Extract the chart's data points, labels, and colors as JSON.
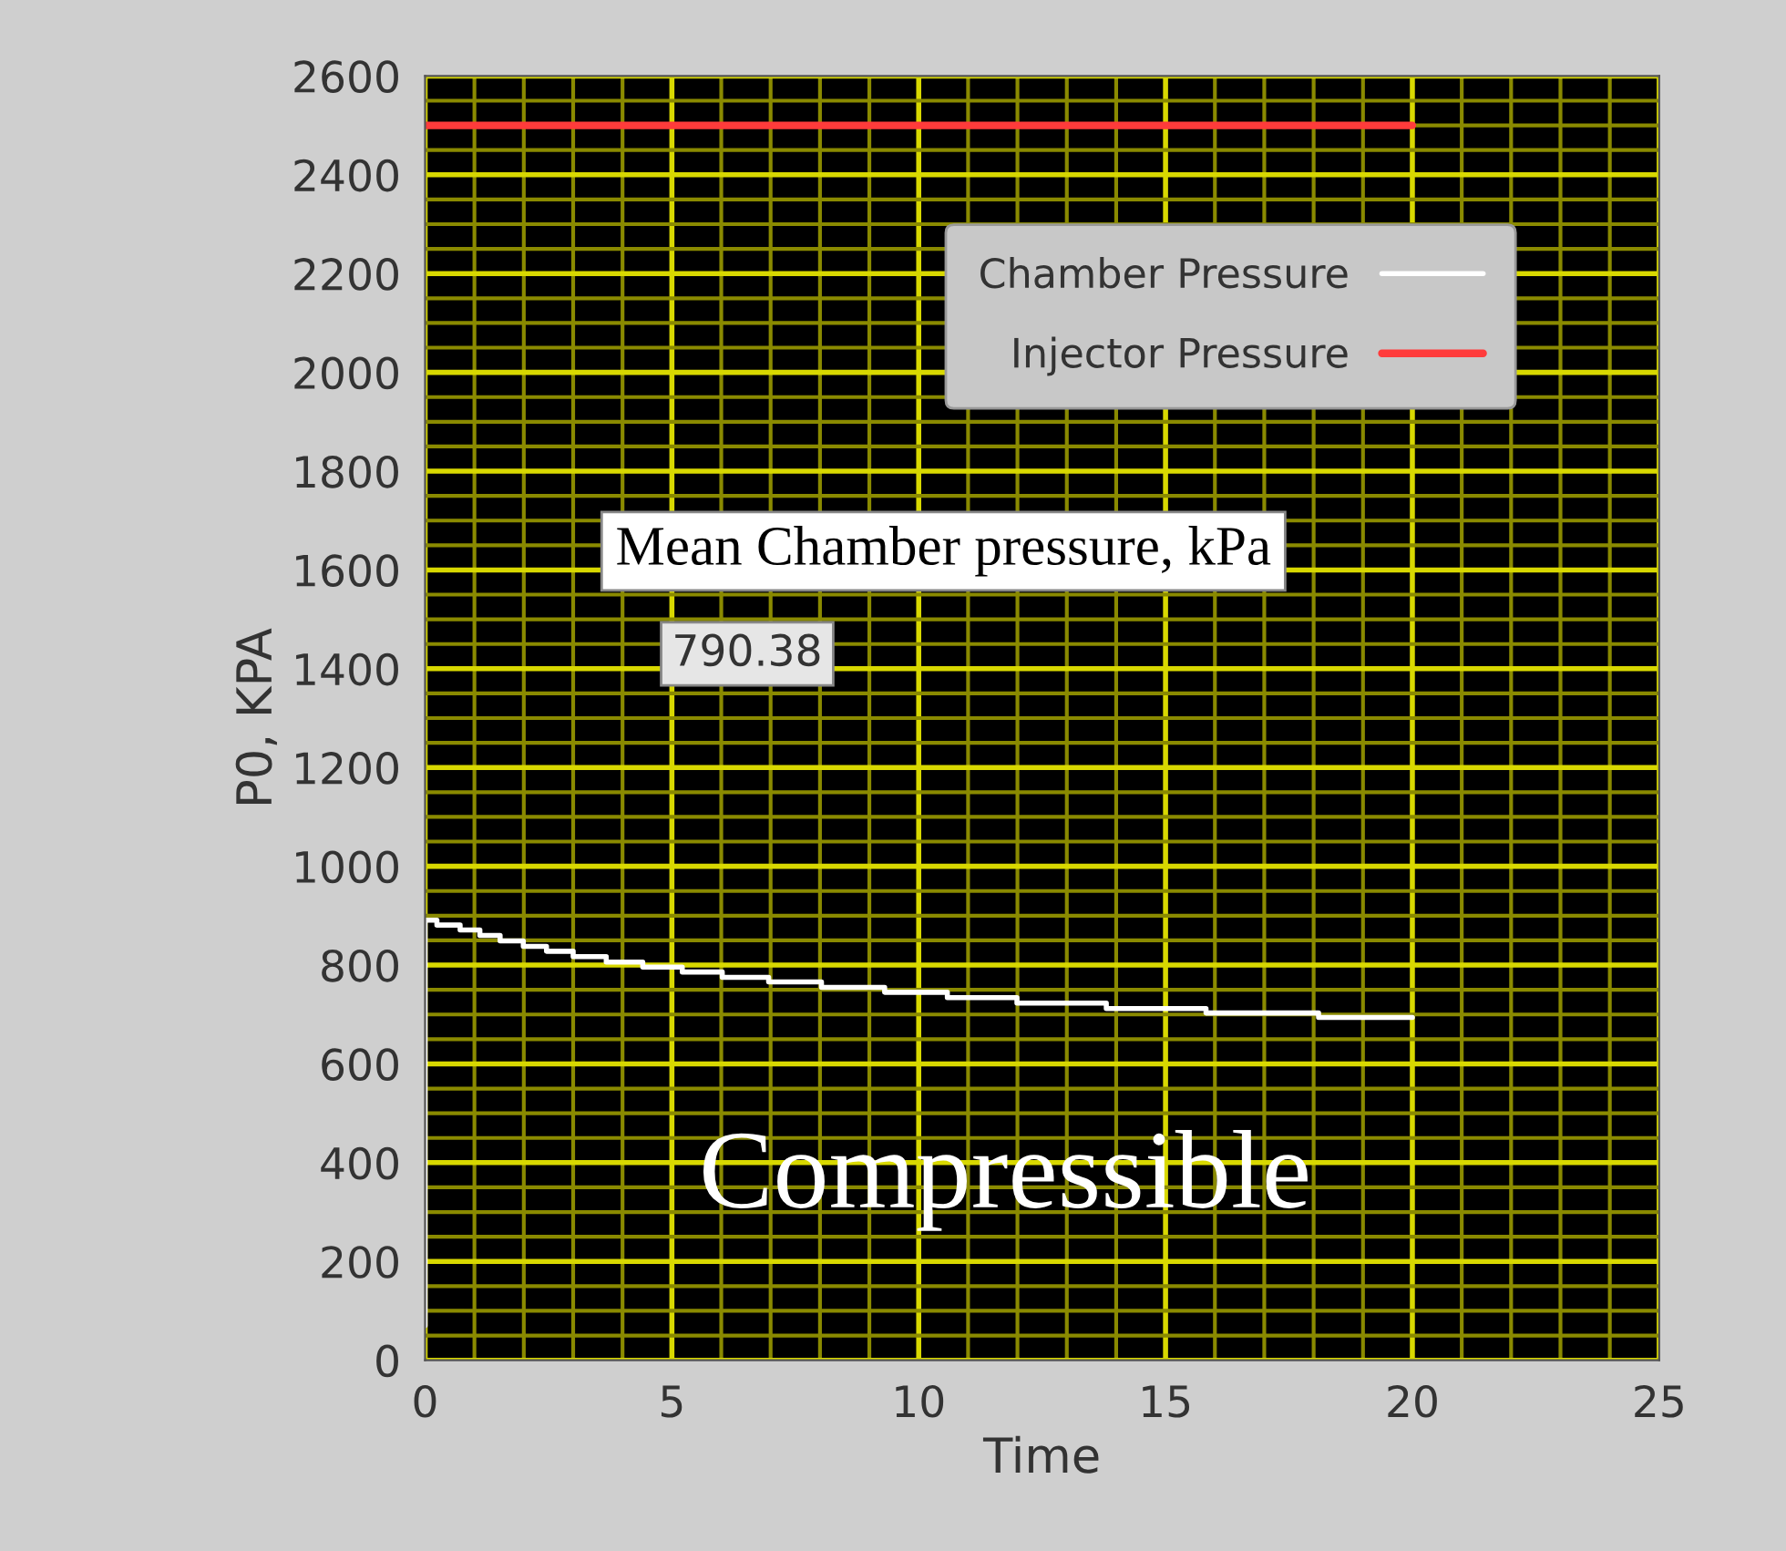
{
  "chart_data": {
    "type": "step",
    "xlabel": "Time",
    "ylabel": "P0, KPA",
    "xlim": [
      0,
      25
    ],
    "xticks": [
      0,
      {
        "value": 1,
        "label": null
      },
      {
        "value": 2,
        "label": null
      },
      {
        "value": 3,
        "label": null
      },
      {
        "value": 4,
        "label": null
      },
      5,
      {
        "value": 6,
        "label": null
      },
      {
        "value": 7,
        "label": null
      },
      {
        "value": 8,
        "label": null
      },
      {
        "value": 9,
        "label": null
      },
      10,
      {
        "value": 11,
        "label": null
      },
      {
        "value": 12,
        "label": null
      },
      {
        "value": 13,
        "label": null
      },
      {
        "value": 14,
        "label": null
      },
      15,
      {
        "value": 16,
        "label": null
      },
      {
        "value": 17,
        "label": null
      },
      {
        "value": 18,
        "label": null
      },
      {
        "value": 19,
        "label": null
      },
      20,
      {
        "value": 21,
        "label": null
      },
      {
        "value": 22,
        "label": null
      },
      {
        "value": 23,
        "label": null
      },
      {
        "value": 24,
        "label": null
      },
      25
    ],
    "ylim": [
      0,
      2600
    ],
    "yticks": [
      0,
      {
        "value": 50,
        "label": null
      },
      {
        "value": 100,
        "label": null
      },
      {
        "value": 150,
        "label": null
      },
      200,
      {
        "value": 250,
        "label": null
      },
      {
        "value": 300,
        "label": null
      },
      {
        "value": 350,
        "label": null
      },
      400,
      {
        "value": 450,
        "label": null
      },
      {
        "value": 500,
        "label": null
      },
      {
        "value": 550,
        "label": null
      },
      600,
      {
        "value": 650,
        "label": null
      },
      {
        "value": 700,
        "label": null
      },
      {
        "value": 750,
        "label": null
      },
      800,
      {
        "value": 850,
        "label": null
      },
      {
        "value": 900,
        "label": null
      },
      {
        "value": 950,
        "label": null
      },
      1000,
      {
        "value": 1050,
        "label": null
      },
      {
        "value": 1100,
        "label": null
      },
      {
        "value": 1150,
        "label": null
      },
      1200,
      {
        "value": 1250,
        "label": null
      },
      {
        "value": 1300,
        "label": null
      },
      {
        "value": 1350,
        "label": null
      },
      1400,
      {
        "value": 1450,
        "label": null
      },
      {
        "value": 1500,
        "label": null
      },
      {
        "value": 1550,
        "label": null
      },
      1600,
      {
        "value": 1650,
        "label": null
      },
      {
        "value": 1700,
        "label": null
      },
      {
        "value": 1750,
        "label": null
      },
      1800,
      {
        "value": 1850,
        "label": null
      },
      {
        "value": 1900,
        "label": null
      },
      {
        "value": 1950,
        "label": null
      },
      2000,
      {
        "value": 2050,
        "label": null
      },
      {
        "value": 2100,
        "label": null
      },
      {
        "value": 2150,
        "label": null
      },
      2200,
      {
        "value": 2250,
        "label": null
      },
      {
        "value": 2300,
        "label": null
      },
      {
        "value": 2350,
        "label": null
      },
      2400,
      {
        "value": 2450,
        "label": null
      },
      {
        "value": 2500,
        "label": null
      },
      {
        "value": 2550,
        "label": null
      },
      2600
    ],
    "grid": true,
    "legend": "top right",
    "annotations": [
      "Mean Chamber pressure, kPa",
      "790.38",
      "Compressible"
    ],
    "series": [
      {
        "name": "Chamber Pressure",
        "color": "#ffffff",
        "x": [
          0,
          0,
          0.24,
          0.71,
          1.11,
          1.52,
          1.99,
          2.46,
          3.0,
          3.67,
          4.41,
          5.21,
          6.02,
          6.96,
          8.03,
          9.31,
          10.58,
          11.99,
          13.8,
          15.82,
          18.1,
          20
        ],
        "values": [
          70,
          891,
          881,
          871,
          860,
          849,
          838,
          828,
          817,
          806,
          796,
          786,
          775,
          766,
          755,
          745,
          734,
          723,
          712,
          703,
          694,
          694
        ]
      },
      {
        "name": "Injector Pressure",
        "color": "#ff3b3b",
        "type": "line",
        "x": [
          0,
          20
        ],
        "values": [
          2500,
          2500
        ]
      }
    ]
  }
}
